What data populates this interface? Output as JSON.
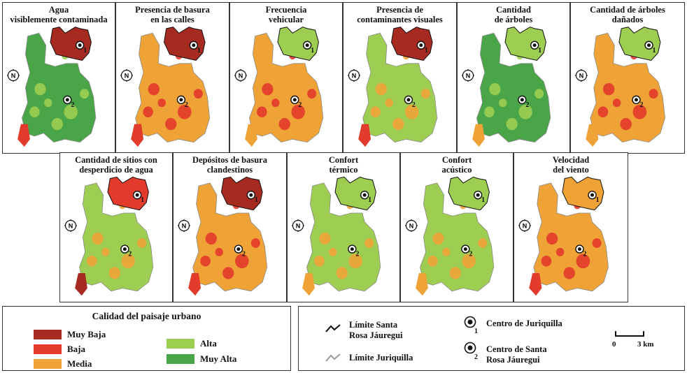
{
  "colors": {
    "muy_baja": "#a72a21",
    "baja": "#e23a2b",
    "media": "#efa337",
    "alta": "#9dce52",
    "muy_alta": "#4aa548"
  },
  "north_symbol": "N",
  "center_labels": [
    "1",
    "2"
  ],
  "panels": [
    {
      "title": "Agua\nvisiblemente contaminada",
      "top": "muy_baja",
      "bottom": "muy_alta"
    },
    {
      "title": "Presencia de basura\nen las calles",
      "top": "muy_baja",
      "bottom": "media"
    },
    {
      "title": "Frecuencia\nvehicular",
      "top": "alta",
      "bottom": "media"
    },
    {
      "title": "Presencia de\ncontaminantes visuales",
      "top": "muy_baja",
      "bottom": "alta"
    },
    {
      "title": "Cantidad\nde árboles",
      "top": "alta",
      "bottom": "muy_alta"
    },
    {
      "title": "Cantidad de árboles\ndañados",
      "top": "alta",
      "bottom": "media"
    },
    {
      "title": "Cantidad de sitios con\ndesperdicio de agua",
      "top": "baja",
      "bottom": "alta"
    },
    {
      "title": "Depósitos de basura\nclandestinos",
      "top": "muy_baja",
      "bottom": "media"
    },
    {
      "title": "Confort\ntérmico",
      "top": "alta",
      "bottom": "alta"
    },
    {
      "title": "Confort\nacústico",
      "top": "alta",
      "bottom": "alta"
    },
    {
      "title": "Velocidad\ndel viento",
      "top": "media",
      "bottom": "media"
    }
  ],
  "legend": {
    "title": "Calidad del paisaje urbano",
    "items": [
      {
        "label": "Muy Baja",
        "color_key": "muy_baja"
      },
      {
        "label": "Baja",
        "color_key": "baja"
      },
      {
        "label": "Media",
        "color_key": "media"
      },
      {
        "label": "Alta",
        "color_key": "alta"
      },
      {
        "label": "Muy Alta",
        "color_key": "muy_alta"
      }
    ]
  },
  "symbols": {
    "limite_santa_rosa": "Límite Santa\nRosa Jáuregui",
    "limite_juriquilla": "Límite Juriquilla",
    "centro_juriquilla": "Centro de Juriquilla",
    "centro_santa_rosa": "Centro de Santa\nRosa Jáuregui",
    "scale_start": "0",
    "scale_end": "3 km"
  }
}
